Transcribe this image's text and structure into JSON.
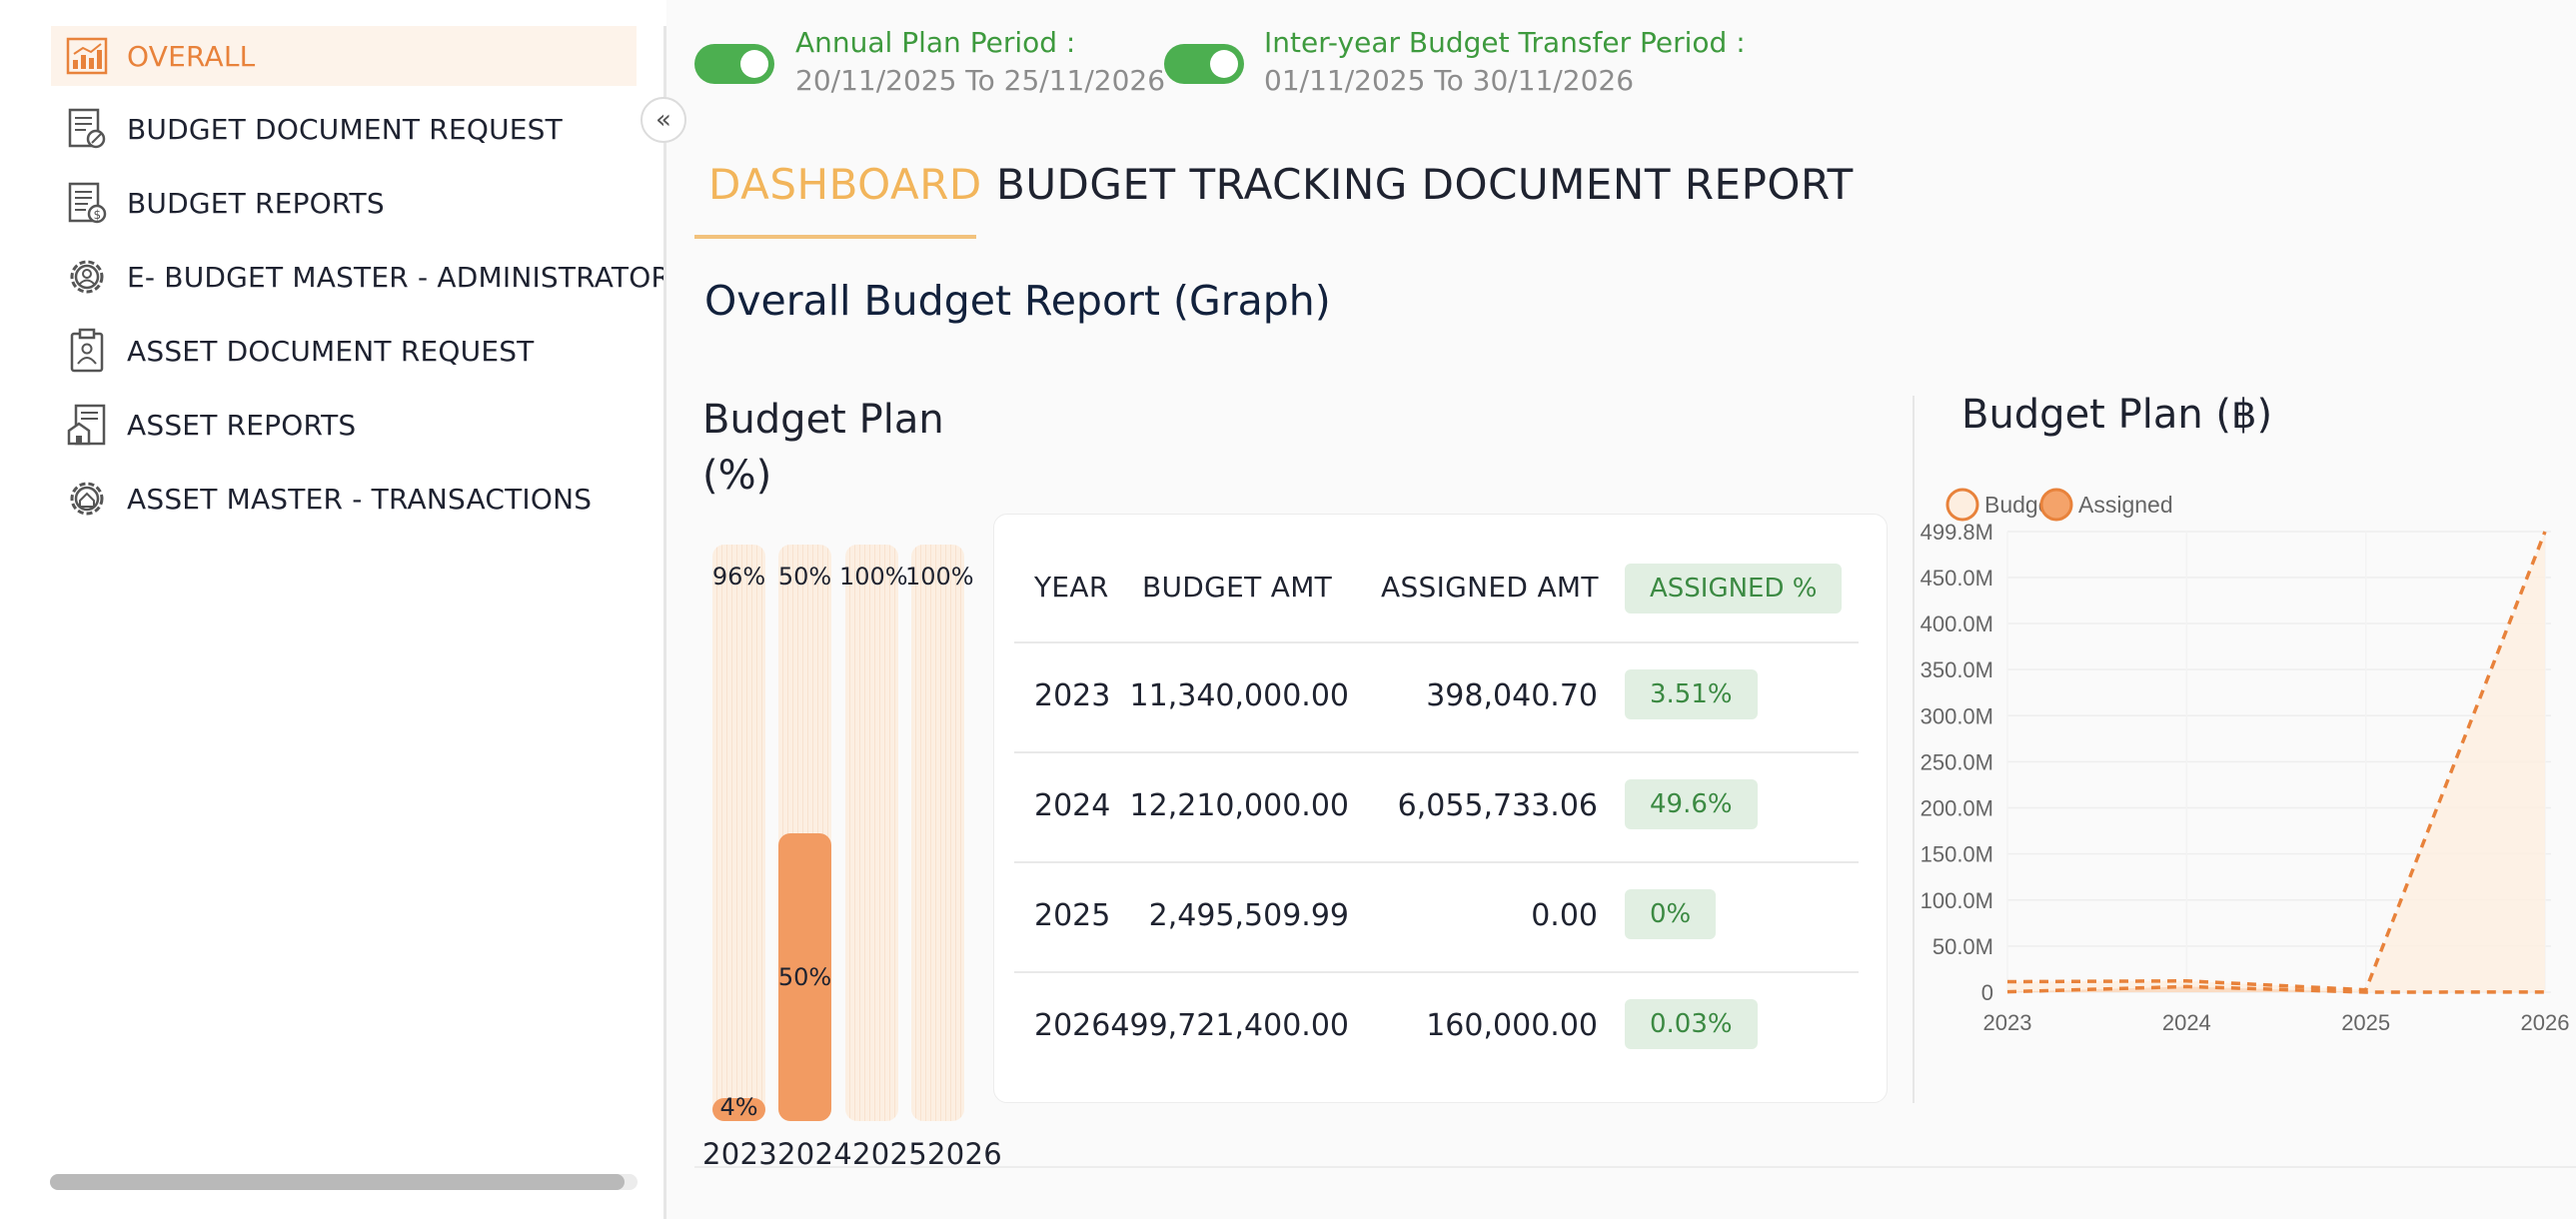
{
  "sidebar": {
    "items": [
      {
        "label": "OVERALL",
        "icon": "chart-report-icon",
        "active": true
      },
      {
        "label": "BUDGET DOCUMENT REQUEST",
        "icon": "document-edit-icon",
        "active": false
      },
      {
        "label": "BUDGET REPORTS",
        "icon": "money-report-icon",
        "active": false
      },
      {
        "label": "E- BUDGET MASTER - ADMINISTRATOR",
        "icon": "gear-user-icon",
        "active": false
      },
      {
        "label": "ASSET DOCUMENT REQUEST",
        "icon": "clipboard-person-icon",
        "active": false
      },
      {
        "label": "ASSET REPORTS",
        "icon": "building-report-icon",
        "active": false
      },
      {
        "label": "ASSET MASTER - TRANSACTIONS",
        "icon": "gear-home-icon",
        "active": false
      }
    ],
    "collapse_glyph": "«"
  },
  "periods": {
    "annual_label": "Annual Plan Period :",
    "annual_value": "20/11/2025  To  25/11/2026",
    "transfer_label": "Inter-year Budget Transfer Period :",
    "transfer_value": "01/11/2025  To  30/11/2026"
  },
  "tabs": {
    "dashboard": "DASHBOARD",
    "tracking": "BUDGET TRACKING DOCUMENT REPORT"
  },
  "section_title": "Overall Budget Report (Graph)",
  "percent_panel": {
    "title": "Budget Plan (%)",
    "years_label": "2023202420252026",
    "bars": [
      {
        "year": "2023",
        "assigned_pct": 4,
        "assigned_label": "4%",
        "remaining_label": "96%"
      },
      {
        "year": "2024",
        "assigned_pct": 50,
        "assigned_label": "50%",
        "remaining_label": "50%"
      },
      {
        "year": "2025",
        "assigned_pct": 0,
        "assigned_label": "",
        "remaining_label": "100%"
      },
      {
        "year": "2026",
        "assigned_pct": 0,
        "assigned_label": "",
        "remaining_label": "100%"
      }
    ]
  },
  "table": {
    "headers": {
      "year": "YEAR",
      "budget": "BUDGET AMT",
      "assigned": "ASSIGNED AMT",
      "pct": "ASSIGNED %"
    },
    "rows": [
      {
        "year": "2023",
        "budget": "11,340,000.00",
        "assigned": "398,040.70",
        "pct": "3.51%"
      },
      {
        "year": "2024",
        "budget": "12,210,000.00",
        "assigned": "6,055,733.06",
        "pct": "49.6%"
      },
      {
        "year": "2025",
        "budget": "2,495,509.99",
        "assigned": "0.00",
        "pct": "0%"
      },
      {
        "year": "2026",
        "budget": "499,721,400.00",
        "assigned": "160,000.00",
        "pct": "0.03%"
      }
    ]
  },
  "chart_data": {
    "type": "line",
    "title": "Budget Plan (฿)",
    "x": [
      "2023",
      "2024",
      "2025",
      "2026"
    ],
    "series": [
      {
        "name": "Budget",
        "values": [
          11.34,
          12.21,
          2.5,
          499.72
        ],
        "color": "#e8823b",
        "fill": "#fdeee0"
      },
      {
        "name": "Assigned",
        "values": [
          0.4,
          6.06,
          0.0,
          0.16
        ],
        "color": "#e8823b",
        "fill": "#f4a36a"
      }
    ],
    "y_unit": "M",
    "ylim": [
      0,
      499.8
    ],
    "y_ticks": [
      "499.8M",
      "450.0M",
      "400.0M",
      "350.0M",
      "300.0M",
      "250.0M",
      "200.0M",
      "150.0M",
      "100.0M",
      "50.0M",
      "0"
    ],
    "y_tick_values": [
      499.8,
      450,
      400,
      350,
      300,
      250,
      200,
      150,
      100,
      50,
      0
    ],
    "legend_placement": "top-center",
    "grid": true
  }
}
